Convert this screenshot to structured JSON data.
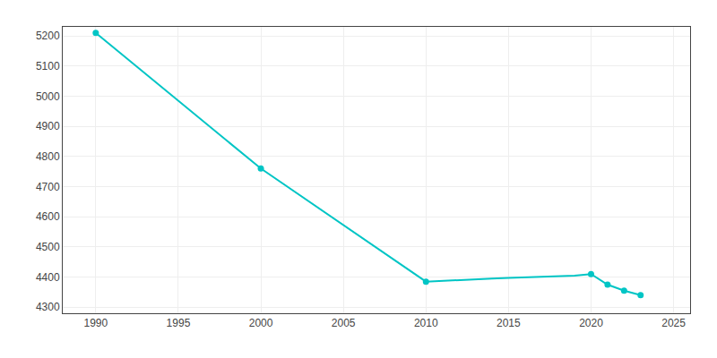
{
  "chart_data": {
    "type": "line",
    "x": [
      1990,
      2000,
      2010,
      2011,
      2012,
      2013,
      2014,
      2015,
      2016,
      2017,
      2018,
      2019,
      2020,
      2021,
      2022,
      2023
    ],
    "series": [
      {
        "type": "line",
        "color": "#00C5C5",
        "values": [
          5210,
          4760,
          4385,
          4388,
          4391,
          4393,
          4395,
          4397,
          4399,
          4401,
          4403,
          4405,
          4410,
          4375,
          4355,
          4340
        ]
      },
      {
        "type": "scatter",
        "color": "#00C5C5",
        "marker": "circle",
        "values": [
          5210,
          4760,
          4385,
          null,
          null,
          null,
          null,
          null,
          null,
          null,
          null,
          null,
          4410,
          4375,
          4355,
          4340
        ]
      }
    ],
    "xlim": [
      1988,
      2026
    ],
    "xticks": [
      1990,
      1995,
      2000,
      2005,
      2010,
      2015,
      2020,
      2025
    ],
    "ylim": [
      4280,
      5230
    ],
    "yticks": [
      4300,
      4400,
      4500,
      4600,
      4700,
      4800,
      4900,
      5000,
      5100,
      5200
    ],
    "grid": true
  }
}
